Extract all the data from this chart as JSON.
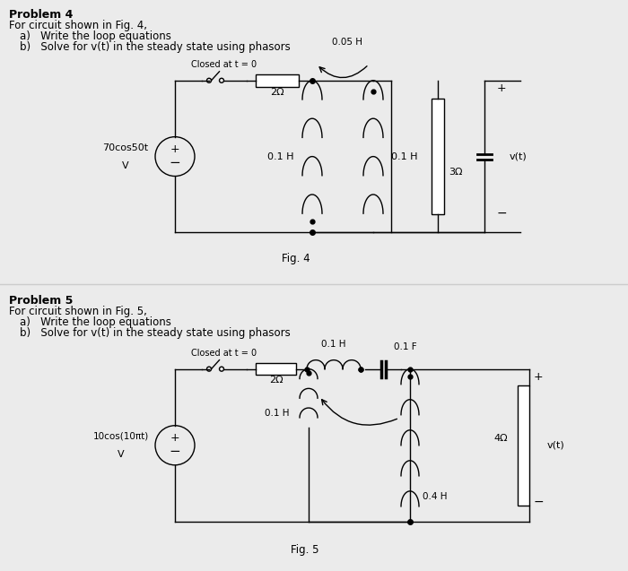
{
  "bg_color": "#ebebeb",
  "panel_bg": "#ffffff",
  "divider_color": "#cccccc",
  "line_color": "#000000",
  "panel1": {
    "title": "Problem 4",
    "line1": "For circuit shown in Fig. 4,",
    "line2a": "a)   Write the loop equations",
    "line2b": "b)   Solve for v(t) in the steady state using phasors",
    "fig_label": "Fig. 4",
    "switch_label": "Closed at t = 0",
    "source_text1": "70cos50t",
    "source_text2": "V",
    "r1_label": "2Ω",
    "l1_label": "0.1 H",
    "l2_label": "0.1 H",
    "m_label": "0.05 H",
    "r2_label": "3Ω",
    "vt_label": "v(t)"
  },
  "panel2": {
    "title": "Problem 5",
    "line1": "For circuit shown in Fig. 5,",
    "line2a": "a)   Write the loop equations",
    "line2b": "b)   Solve for v(t) in the steady state using phasors",
    "fig_label": "Fig. 5",
    "switch_label": "Closed at t = 0",
    "source_text1": "10cos(10πt)",
    "source_text2": "V",
    "r1_label": "2Ω",
    "l1_label": "0.1 H",
    "l2_label": "0.1 H",
    "l3_label": "0.4 H",
    "c1_label": "0.1 F",
    "r2_label": "4Ω",
    "vt_label": "v(t)"
  }
}
